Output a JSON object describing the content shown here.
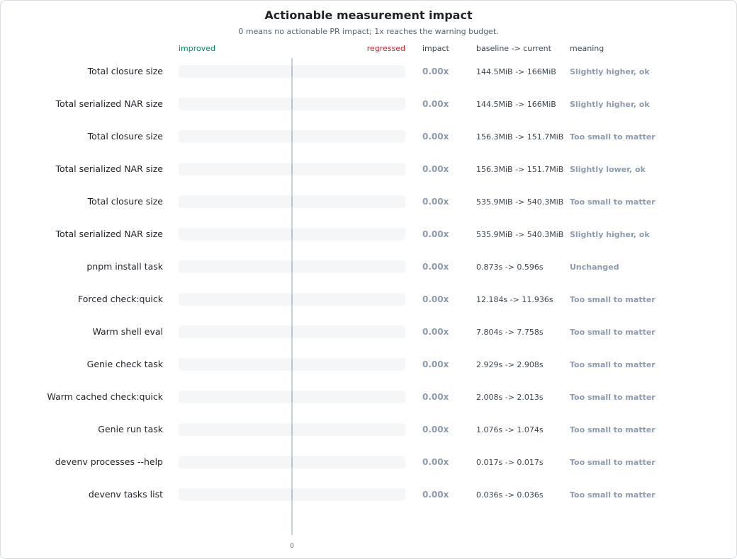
{
  "title": "Actionable measurement impact",
  "subtitle": "0 means no actionable PR impact; 1x reaches the warning budget.",
  "headers": {
    "improved": "improved",
    "regressed": "regressed",
    "impact": "impact",
    "baseline_current": "baseline -> current",
    "meaning": "meaning"
  },
  "zero_tick": "0",
  "colors": {
    "improved": "#0a8a5a",
    "regressed": "#d1242f",
    "neutral_text": "#8c9bb0",
    "bar_track": "#f5f6f8",
    "zero_line": "#b6bfcc"
  },
  "chart_data": {
    "type": "bar",
    "title": "Actionable measurement impact",
    "subtitle": "0 means no actionable PR impact; 1x reaches the warning budget.",
    "orientation": "horizontal",
    "xlim": [
      -1,
      1
    ],
    "categories": [
      "Total closure size",
      "Total serialized NAR size",
      "Total closure size",
      "Total serialized NAR size",
      "Total closure size",
      "Total serialized NAR size",
      "pnpm install task",
      "Forced check:quick",
      "Warm shell eval",
      "Genie check task",
      "Warm cached check:quick",
      "Genie run task",
      "devenv processes --help",
      "devenv tasks list"
    ],
    "values": [
      0,
      0,
      0,
      0,
      0,
      0,
      0,
      0,
      0,
      0,
      0,
      0,
      0,
      0
    ],
    "rows": [
      {
        "label": "Total closure size",
        "impact": "0.00x",
        "change": "144.5MiB -> 166MiB",
        "meaning": "Slightly higher, ok"
      },
      {
        "label": "Total serialized NAR size",
        "impact": "0.00x",
        "change": "144.5MiB -> 166MiB",
        "meaning": "Slightly higher, ok"
      },
      {
        "label": "Total closure size",
        "impact": "0.00x",
        "change": "156.3MiB -> 151.7MiB",
        "meaning": "Too small to matter"
      },
      {
        "label": "Total serialized NAR size",
        "impact": "0.00x",
        "change": "156.3MiB -> 151.7MiB",
        "meaning": "Slightly lower, ok"
      },
      {
        "label": "Total closure size",
        "impact": "0.00x",
        "change": "535.9MiB -> 540.3MiB",
        "meaning": "Too small to matter"
      },
      {
        "label": "Total serialized NAR size",
        "impact": "0.00x",
        "change": "535.9MiB -> 540.3MiB",
        "meaning": "Slightly higher, ok"
      },
      {
        "label": "pnpm install task",
        "impact": "0.00x",
        "change": "0.873s -> 0.596s",
        "meaning": "Unchanged"
      },
      {
        "label": "Forced check:quick",
        "impact": "0.00x",
        "change": "12.184s -> 11.936s",
        "meaning": "Too small to matter"
      },
      {
        "label": "Warm shell eval",
        "impact": "0.00x",
        "change": "7.804s -> 7.758s",
        "meaning": "Too small to matter"
      },
      {
        "label": "Genie check task",
        "impact": "0.00x",
        "change": "2.929s -> 2.908s",
        "meaning": "Too small to matter"
      },
      {
        "label": "Warm cached check:quick",
        "impact": "0.00x",
        "change": "2.008s -> 2.013s",
        "meaning": "Too small to matter"
      },
      {
        "label": "Genie run task",
        "impact": "0.00x",
        "change": "1.076s -> 1.074s",
        "meaning": "Too small to matter"
      },
      {
        "label": "devenv processes --help",
        "impact": "0.00x",
        "change": "0.017s -> 0.017s",
        "meaning": "Too small to matter"
      },
      {
        "label": "devenv tasks list",
        "impact": "0.00x",
        "change": "0.036s -> 0.036s",
        "meaning": "Too small to matter"
      }
    ]
  }
}
